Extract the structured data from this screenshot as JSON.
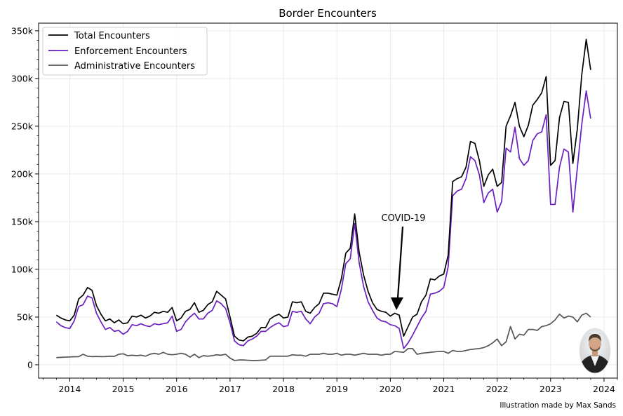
{
  "chart_data": {
    "type": "line",
    "title": "Border Encounters",
    "xlabel": "",
    "ylabel": "",
    "x_ticks": [
      "2014",
      "2015",
      "2016",
      "2017",
      "2018",
      "2019",
      "2020",
      "2021",
      "2022",
      "2023",
      "2024"
    ],
    "y_ticks": [
      "0",
      "50k",
      "100k",
      "150k",
      "200k",
      "250k",
      "300k",
      "350k"
    ],
    "xlim": [
      "2013-06",
      "2024-04"
    ],
    "ylim": [
      -14000,
      358000
    ],
    "grid": true,
    "legend_position": "top-left",
    "x": [
      "2013-10",
      "2013-11",
      "2013-12",
      "2014-01",
      "2014-02",
      "2014-03",
      "2014-04",
      "2014-05",
      "2014-06",
      "2014-07",
      "2014-08",
      "2014-09",
      "2014-10",
      "2014-11",
      "2014-12",
      "2015-01",
      "2015-02",
      "2015-03",
      "2015-04",
      "2015-05",
      "2015-06",
      "2015-07",
      "2015-08",
      "2015-09",
      "2015-10",
      "2015-11",
      "2015-12",
      "2016-01",
      "2016-02",
      "2016-03",
      "2016-04",
      "2016-05",
      "2016-06",
      "2016-07",
      "2016-08",
      "2016-09",
      "2016-10",
      "2016-11",
      "2016-12",
      "2017-01",
      "2017-02",
      "2017-03",
      "2017-04",
      "2017-05",
      "2017-06",
      "2017-07",
      "2017-08",
      "2017-09",
      "2017-10",
      "2017-11",
      "2017-12",
      "2018-01",
      "2018-02",
      "2018-03",
      "2018-04",
      "2018-05",
      "2018-06",
      "2018-07",
      "2018-08",
      "2018-09",
      "2018-10",
      "2018-11",
      "2018-12",
      "2019-01",
      "2019-02",
      "2019-03",
      "2019-04",
      "2019-05",
      "2019-06",
      "2019-07",
      "2019-08",
      "2019-09",
      "2019-10",
      "2019-11",
      "2019-12",
      "2020-01",
      "2020-02",
      "2020-03",
      "2020-04",
      "2020-05",
      "2020-06",
      "2020-07",
      "2020-08",
      "2020-09",
      "2020-10",
      "2020-11",
      "2020-12",
      "2021-01",
      "2021-02",
      "2021-03",
      "2021-04",
      "2021-05",
      "2021-06",
      "2021-07",
      "2021-08",
      "2021-09",
      "2021-10",
      "2021-11",
      "2021-12",
      "2022-01",
      "2022-02",
      "2022-03",
      "2022-04",
      "2022-05",
      "2022-06",
      "2022-07",
      "2022-08",
      "2022-09",
      "2022-10",
      "2022-11",
      "2022-12",
      "2023-01",
      "2023-02",
      "2023-03",
      "2023-04",
      "2023-05",
      "2023-06",
      "2023-07",
      "2023-08",
      "2023-09",
      "2023-10"
    ],
    "series": [
      {
        "name": "Total Encounters",
        "color": "#000000",
        "values": [
          52000,
          49000,
          47000,
          46000,
          52000,
          69000,
          73000,
          81000,
          78000,
          62000,
          53000,
          46000,
          48000,
          44000,
          47000,
          43000,
          44000,
          51000,
          50000,
          52000,
          49000,
          51000,
          55000,
          54000,
          56000,
          55000,
          60000,
          46000,
          49000,
          56000,
          58000,
          65000,
          55000,
          57000,
          63000,
          66000,
          77000,
          73000,
          69000,
          50000,
          30000,
          26000,
          25000,
          29000,
          30000,
          33000,
          39000,
          39000,
          48000,
          51000,
          53000,
          49000,
          50000,
          66000,
          65000,
          66000,
          56000,
          54000,
          60000,
          64000,
          75000,
          75000,
          74000,
          73000,
          90000,
          117000,
          122000,
          158000,
          118000,
          94000,
          77000,
          65000,
          58000,
          56000,
          55000,
          51000,
          54000,
          52000,
          30000,
          40000,
          50000,
          53000,
          66000,
          73000,
          90000,
          89000,
          93000,
          95000,
          115000,
          192000,
          195000,
          197000,
          207000,
          234000,
          232000,
          214000,
          187000,
          199000,
          205000,
          187000,
          191000,
          250000,
          261000,
          275000,
          250000,
          239000,
          251000,
          272000,
          278000,
          285000,
          302000,
          209000,
          214000,
          259000,
          276000,
          275000,
          211000,
          247000,
          304000,
          341000,
          309000
        ]
      },
      {
        "name": "Enforcement Encounters",
        "color": "#6a1fbf",
        "values": [
          45000,
          41000,
          39000,
          38000,
          46000,
          61000,
          63000,
          72000,
          70000,
          54000,
          45000,
          37000,
          39000,
          35000,
          36000,
          32000,
          35000,
          42000,
          41000,
          43000,
          41000,
          40000,
          43000,
          42000,
          43000,
          44000,
          51000,
          35000,
          37000,
          45000,
          50000,
          54000,
          48000,
          48000,
          54000,
          57000,
          67000,
          64000,
          59000,
          44000,
          25000,
          21000,
          20000,
          25000,
          27000,
          30000,
          35000,
          35000,
          39000,
          42000,
          44000,
          40000,
          41000,
          56000,
          55000,
          56000,
          48000,
          43000,
          50000,
          54000,
          64000,
          65000,
          64000,
          61000,
          79000,
          106000,
          111000,
          148000,
          107000,
          82000,
          66000,
          57000,
          49000,
          46000,
          45000,
          42000,
          41000,
          38000,
          17000,
          23000,
          31000,
          40000,
          49000,
          56000,
          74000,
          75000,
          77000,
          81000,
          103000,
          177000,
          182000,
          184000,
          195000,
          218000,
          214000,
          199000,
          170000,
          180000,
          184000,
          160000,
          171000,
          227000,
          223000,
          249000,
          216000,
          209000,
          214000,
          235000,
          242000,
          244000,
          262000,
          168000,
          168000,
          207000,
          226000,
          223000,
          160000,
          206000,
          252000,
          287000,
          258000
        ]
      },
      {
        "name": "Administrative Encounters",
        "color": "#555555",
        "values": [
          7500,
          7800,
          8000,
          8200,
          8400,
          8500,
          11000,
          9000,
          8500,
          8700,
          8500,
          8600,
          9000,
          8800,
          11000,
          11500,
          9500,
          10000,
          9500,
          10000,
          9000,
          11000,
          12000,
          11000,
          13000,
          11000,
          10500,
          11000,
          12000,
          11000,
          8000,
          11000,
          7500,
          9500,
          9000,
          9500,
          10500,
          10000,
          11000,
          7000,
          4500,
          5000,
          5000,
          4700,
          4500,
          4500,
          4800,
          5000,
          9000,
          9000,
          9000,
          9000,
          9000,
          10500,
          10000,
          10000,
          9000,
          11000,
          11000,
          11000,
          12000,
          11000,
          11000,
          12000,
          10000,
          11000,
          11000,
          10000,
          11000,
          12000,
          11000,
          11000,
          11000,
          10000,
          11000,
          11000,
          14000,
          13500,
          13000,
          17000,
          17000,
          11000,
          12000,
          12500,
          13000,
          13500,
          14000,
          14000,
          12000,
          15000,
          14000,
          14000,
          15000,
          16000,
          16500,
          17000,
          18000,
          20000,
          23000,
          27000,
          20000,
          24000,
          40000,
          27000,
          32000,
          31000,
          37000,
          37000,
          36000,
          40000,
          41000,
          43000,
          47000,
          53000,
          49000,
          51000,
          50000,
          45000,
          52000,
          54000,
          50000
        ]
      }
    ],
    "annotations": [
      {
        "text": "COVID-19",
        "x": "2020-01",
        "y": 54000
      }
    ],
    "credit": "Illustration made by Max Sands"
  }
}
